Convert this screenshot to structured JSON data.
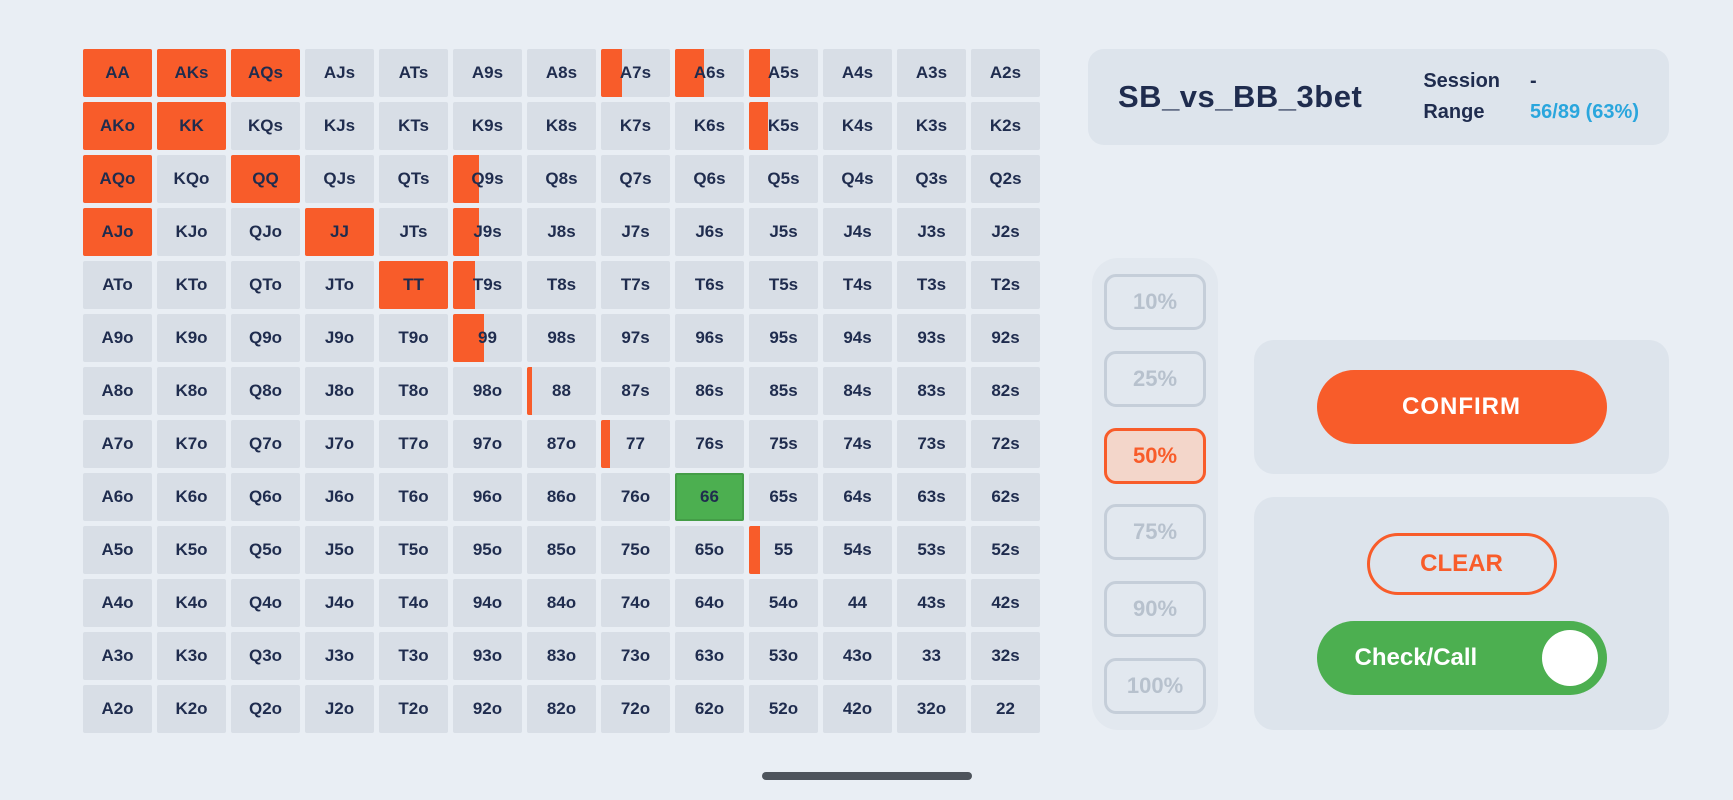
{
  "colors": {
    "background": "#e9eef4",
    "cell_bg": "#d8dee6",
    "text_dark": "#1f2c4e",
    "orange": "#f85c2a",
    "green": "#4caf50",
    "accent_blue": "#2aa6dd",
    "card_bg": "#dde4ec"
  },
  "header": {
    "title": "SB_vs_BB_3bet",
    "session_label": "Session",
    "session_value": "-",
    "range_label": "Range",
    "range_value": "56/89 (63%)"
  },
  "percent_buttons": [
    {
      "label": "10%",
      "active": false
    },
    {
      "label": "25%",
      "active": false
    },
    {
      "label": "50%",
      "active": true
    },
    {
      "label": "75%",
      "active": false
    },
    {
      "label": "90%",
      "active": false
    },
    {
      "label": "100%",
      "active": false
    }
  ],
  "actions": {
    "confirm_label": "CONFIRM",
    "clear_label": "CLEAR",
    "toggle_label": "Check/Call",
    "toggle_state": "on"
  },
  "grid": {
    "hands": [
      [
        "AA",
        "AKs",
        "AQs",
        "AJs",
        "ATs",
        "A9s",
        "A8s",
        "A7s",
        "A6s",
        "A5s",
        "A4s",
        "A3s",
        "A2s"
      ],
      [
        "AKo",
        "KK",
        "KQs",
        "KJs",
        "KTs",
        "K9s",
        "K8s",
        "K7s",
        "K6s",
        "K5s",
        "K4s",
        "K3s",
        "K2s"
      ],
      [
        "AQo",
        "KQo",
        "QQ",
        "QJs",
        "QTs",
        "Q9s",
        "Q8s",
        "Q7s",
        "Q6s",
        "Q5s",
        "Q4s",
        "Q3s",
        "Q2s"
      ],
      [
        "AJo",
        "KJo",
        "QJo",
        "JJ",
        "JTs",
        "J9s",
        "J8s",
        "J7s",
        "J6s",
        "J5s",
        "J4s",
        "J3s",
        "J2s"
      ],
      [
        "ATo",
        "KTo",
        "QTo",
        "JTo",
        "TT",
        "T9s",
        "T8s",
        "T7s",
        "T6s",
        "T5s",
        "T4s",
        "T3s",
        "T2s"
      ],
      [
        "A9o",
        "K9o",
        "Q9o",
        "J9o",
        "T9o",
        "99",
        "98s",
        "97s",
        "96s",
        "95s",
        "94s",
        "93s",
        "92s"
      ],
      [
        "A8o",
        "K8o",
        "Q8o",
        "J8o",
        "T8o",
        "98o",
        "88",
        "87s",
        "86s",
        "85s",
        "84s",
        "83s",
        "82s"
      ],
      [
        "A7o",
        "K7o",
        "Q7o",
        "J7o",
        "T7o",
        "97o",
        "87o",
        "77",
        "76s",
        "75s",
        "74s",
        "73s",
        "72s"
      ],
      [
        "A6o",
        "K6o",
        "Q6o",
        "J6o",
        "T6o",
        "96o",
        "86o",
        "76o",
        "66",
        "65s",
        "64s",
        "63s",
        "62s"
      ],
      [
        "A5o",
        "K5o",
        "Q5o",
        "J5o",
        "T5o",
        "95o",
        "85o",
        "75o",
        "65o",
        "55",
        "54s",
        "53s",
        "52s"
      ],
      [
        "A4o",
        "K4o",
        "Q4o",
        "J4o",
        "T4o",
        "94o",
        "84o",
        "74o",
        "64o",
        "54o",
        "44",
        "43s",
        "42s"
      ],
      [
        "A3o",
        "K3o",
        "Q3o",
        "J3o",
        "T3o",
        "93o",
        "83o",
        "73o",
        "63o",
        "53o",
        "43o",
        "33",
        "32s"
      ],
      [
        "A2o",
        "K2o",
        "Q2o",
        "J2o",
        "T2o",
        "92o",
        "82o",
        "72o",
        "62o",
        "52o",
        "42o",
        "32o",
        "22"
      ]
    ],
    "fills": {
      "AA": {
        "frac": 1,
        "color": "orange"
      },
      "AKs": {
        "frac": 1,
        "color": "orange"
      },
      "AQs": {
        "frac": 1,
        "color": "orange"
      },
      "A7s": {
        "frac": 0.3,
        "color": "orange"
      },
      "A6s": {
        "frac": 0.42,
        "color": "orange"
      },
      "A5s": {
        "frac": 0.3,
        "color": "orange"
      },
      "AKo": {
        "frac": 1,
        "color": "orange"
      },
      "KK": {
        "frac": 1,
        "color": "orange"
      },
      "K5s": {
        "frac": 0.28,
        "color": "orange"
      },
      "AQo": {
        "frac": 1,
        "color": "orange"
      },
      "QQ": {
        "frac": 1,
        "color": "orange"
      },
      "Q9s": {
        "frac": 0.38,
        "color": "orange"
      },
      "AJo": {
        "frac": 1,
        "color": "orange"
      },
      "JJ": {
        "frac": 1,
        "color": "orange"
      },
      "J9s": {
        "frac": 0.38,
        "color": "orange"
      },
      "TT": {
        "frac": 1,
        "color": "orange"
      },
      "T9s": {
        "frac": 0.32,
        "color": "orange"
      },
      "99": {
        "frac": 0.45,
        "color": "orange"
      },
      "88": {
        "frac": 0.07,
        "color": "orange"
      },
      "77": {
        "frac": 0.13,
        "color": "orange"
      },
      "66": {
        "frac": 1,
        "color": "green"
      },
      "55": {
        "frac": 0.16,
        "color": "orange"
      }
    }
  }
}
